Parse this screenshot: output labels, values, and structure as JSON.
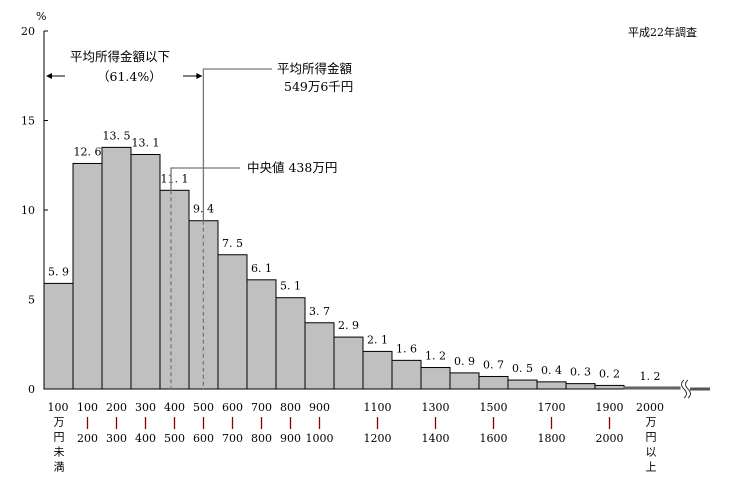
{
  "chart_data": {
    "type": "bar",
    "title": "",
    "survey_note": "平成22年調査",
    "ylabel": "%",
    "ylim": [
      0,
      20
    ],
    "yticks": [
      "0",
      "5",
      "10",
      "15",
      "20"
    ],
    "grid": false,
    "categories": [
      {
        "top": "100",
        "sep": "",
        "bottom": "万円未満",
        "value": 5.9,
        "label": "5.9"
      },
      {
        "top": "100",
        "sep": "|",
        "bottom": "200",
        "value": 12.6,
        "label": "12.6"
      },
      {
        "top": "200",
        "sep": "|",
        "bottom": "300",
        "value": 13.5,
        "label": "13.5"
      },
      {
        "top": "300",
        "sep": "|",
        "bottom": "400",
        "value": 13.1,
        "label": "13.1"
      },
      {
        "top": "400",
        "sep": "|",
        "bottom": "500",
        "value": 11.1,
        "label": "11.1"
      },
      {
        "top": "500",
        "sep": "|",
        "bottom": "600",
        "value": 9.4,
        "label": "9.4"
      },
      {
        "top": "600",
        "sep": "|",
        "bottom": "700",
        "value": 7.5,
        "label": "7.5"
      },
      {
        "top": "700",
        "sep": "|",
        "bottom": "800",
        "value": 6.1,
        "label": "6.1"
      },
      {
        "top": "800",
        "sep": "|",
        "bottom": "900",
        "value": 5.1,
        "label": "5.1"
      },
      {
        "top": "900",
        "sep": "|",
        "bottom": "1000",
        "value": 3.7,
        "label": "3.7"
      },
      {
        "top": "",
        "sep": "",
        "bottom": "",
        "value": 2.9,
        "label": "2.9"
      },
      {
        "top": "1100",
        "sep": "|",
        "bottom": "1200",
        "value": 2.1,
        "label": "2.1"
      },
      {
        "top": "",
        "sep": "",
        "bottom": "",
        "value": 1.6,
        "label": "1.6"
      },
      {
        "top": "1300",
        "sep": "|",
        "bottom": "1400",
        "value": 1.2,
        "label": "1.2"
      },
      {
        "top": "",
        "sep": "",
        "bottom": "",
        "value": 0.9,
        "label": "0.9"
      },
      {
        "top": "1500",
        "sep": "|",
        "bottom": "1600",
        "value": 0.7,
        "label": "0.7"
      },
      {
        "top": "",
        "sep": "",
        "bottom": "",
        "value": 0.5,
        "label": "0.5"
      },
      {
        "top": "1700",
        "sep": "|",
        "bottom": "1800",
        "value": 0.4,
        "label": "0.4"
      },
      {
        "top": "",
        "sep": "",
        "bottom": "",
        "value": 0.3,
        "label": "0.3"
      },
      {
        "top": "1900",
        "sep": "|",
        "bottom": "2000",
        "value": 0.2,
        "label": "0.2"
      }
    ],
    "last_category": {
      "top": "2000",
      "bottom": "万円以上",
      "value": 1.2,
      "label": "1.2",
      "axis_break": true
    },
    "annotations": {
      "below_mean_label": "平均所得金額以下",
      "below_mean_share": "（61.4%）",
      "mean_label": "平均所得金額",
      "mean_value_text": "549万6千円",
      "mean_value": 549.6,
      "median_label": "中央値 438万円",
      "median_value": 438
    },
    "colors": {
      "bar": "#c0c0c0",
      "bar_edge": "#000000",
      "separator": "#8b0000",
      "ref_line": "#777777"
    }
  }
}
